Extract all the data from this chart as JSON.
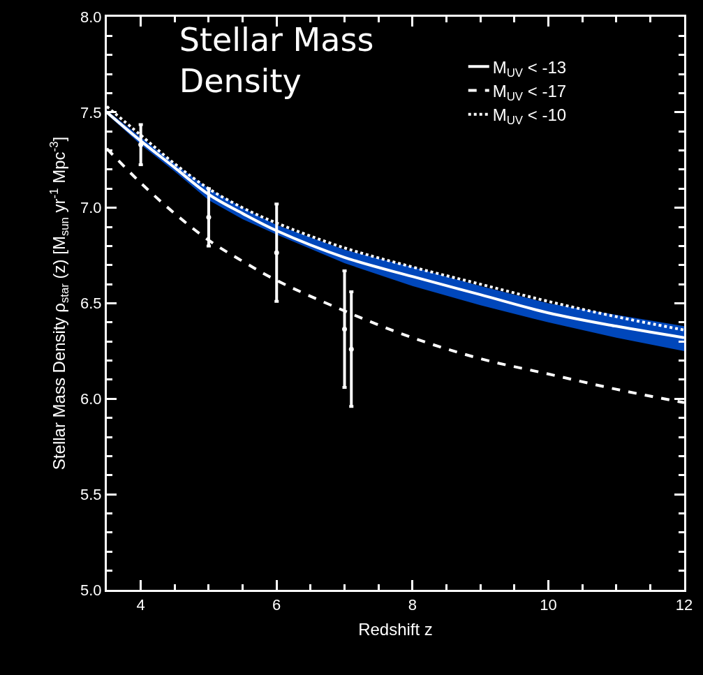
{
  "chart_data": {
    "type": "line",
    "title": "Stellar Mass\nDensity",
    "xlabel": "Redshift z",
    "ylabel": "Stellar Mass Density ρ$_{star}$ (z) [M$_{sun}$ yr$^{-1}$ Mpc$^{-3}$]",
    "x": [
      3.5,
      4,
      4.5,
      5,
      5.5,
      6,
      7,
      8,
      9,
      10,
      11,
      12
    ],
    "series": [
      {
        "name": "M$_{UV}$ < -13",
        "color": "#ffffff",
        "line_style": "solid",
        "values": [
          7.5,
          7.35,
          7.21,
          7.07,
          6.97,
          6.88,
          6.74,
          6.64,
          6.545,
          6.45,
          6.38,
          6.32
        ],
        "lower": [
          7.49,
          7.33,
          7.19,
          7.04,
          6.94,
          6.86,
          6.71,
          6.59,
          6.49,
          6.4,
          6.32,
          6.25
        ],
        "upper": [
          7.51,
          7.37,
          7.23,
          7.1,
          7.0,
          6.91,
          6.78,
          6.69,
          6.59,
          6.5,
          6.44,
          6.38
        ]
      },
      {
        "name": "M$_{UV}$ < -17",
        "color": "#ffffff",
        "line_style": "dashed",
        "values": [
          7.31,
          7.13,
          6.97,
          6.83,
          6.72,
          6.62,
          6.46,
          6.32,
          6.21,
          6.13,
          6.05,
          5.98
        ]
      },
      {
        "name": "M$_{UV}$ < -10",
        "color": "#ffffff",
        "line_style": "dotted",
        "values": [
          7.53,
          7.38,
          7.23,
          7.1,
          7.0,
          6.92,
          6.79,
          6.69,
          6.6,
          6.51,
          6.43,
          6.36
        ]
      },
      {
        "type": "scatter",
        "marker": "none",
        "color": "#ffffff",
        "x": [
          4,
          5,
          6,
          7,
          7.1
        ],
        "values": [
          7.33,
          6.95,
          6.765,
          6.365,
          6.26
        ],
        "errors": [
          0.105,
          0.15,
          0.255,
          0.305,
          0.3
        ]
      }
    ],
    "xlim": [
      3.5,
      12
    ],
    "xticks": [
      {
        "value": 4,
        "label": "4"
      },
      {
        "value": 4.5,
        "label": null
      },
      {
        "value": 5,
        "label": null
      },
      {
        "value": 5.5,
        "label": null
      },
      {
        "value": 6,
        "label": "6"
      },
      {
        "value": 6.5,
        "label": null
      },
      {
        "value": 7,
        "label": null
      },
      {
        "value": 7.5,
        "label": null
      },
      {
        "value": 8,
        "label": "8"
      },
      {
        "value": 8.5,
        "label": null
      },
      {
        "value": 9,
        "label": null
      },
      {
        "value": 9.5,
        "label": null
      },
      {
        "value": 10,
        "label": "10"
      },
      {
        "value": 10.5,
        "label": null
      },
      {
        "value": 11,
        "label": null
      },
      {
        "value": 11.5,
        "label": null
      },
      {
        "value": 12,
        "label": "12"
      }
    ],
    "ylim": [
      5.0,
      8.0
    ],
    "yticks": [
      {
        "value": 5.0,
        "label": "5.0"
      },
      {
        "value": 5.1,
        "label": null
      },
      {
        "value": 5.2,
        "label": null
      },
      {
        "value": 5.3,
        "label": null
      },
      {
        "value": 5.4,
        "label": null
      },
      {
        "value": 5.5,
        "label": "5.5"
      },
      {
        "value": 5.6,
        "label": null
      },
      {
        "value": 5.7,
        "label": null
      },
      {
        "value": 5.8,
        "label": null
      },
      {
        "value": 5.9,
        "label": null
      },
      {
        "value": 6.0,
        "label": "6.0"
      },
      {
        "value": 6.1,
        "label": null
      },
      {
        "value": 6.2,
        "label": null
      },
      {
        "value": 6.3,
        "label": null
      },
      {
        "value": 6.4,
        "label": null
      },
      {
        "value": 6.5,
        "label": "6.5"
      },
      {
        "value": 6.6,
        "label": null
      },
      {
        "value": 6.7,
        "label": null
      },
      {
        "value": 6.8,
        "label": null
      },
      {
        "value": 6.9,
        "label": null
      },
      {
        "value": 7.0,
        "label": "7.0"
      },
      {
        "value": 7.1,
        "label": null
      },
      {
        "value": 7.2,
        "label": null
      },
      {
        "value": 7.3,
        "label": null
      },
      {
        "value": 7.4,
        "label": null
      },
      {
        "value": 7.5,
        "label": "7.5"
      },
      {
        "value": 7.6,
        "label": null
      },
      {
        "value": 7.7,
        "label": null
      },
      {
        "value": 7.8,
        "label": null
      },
      {
        "value": 7.9,
        "label": null
      },
      {
        "value": 8.0,
        "label": "8.0"
      }
    ],
    "legend": "top right",
    "grid": false
  }
}
